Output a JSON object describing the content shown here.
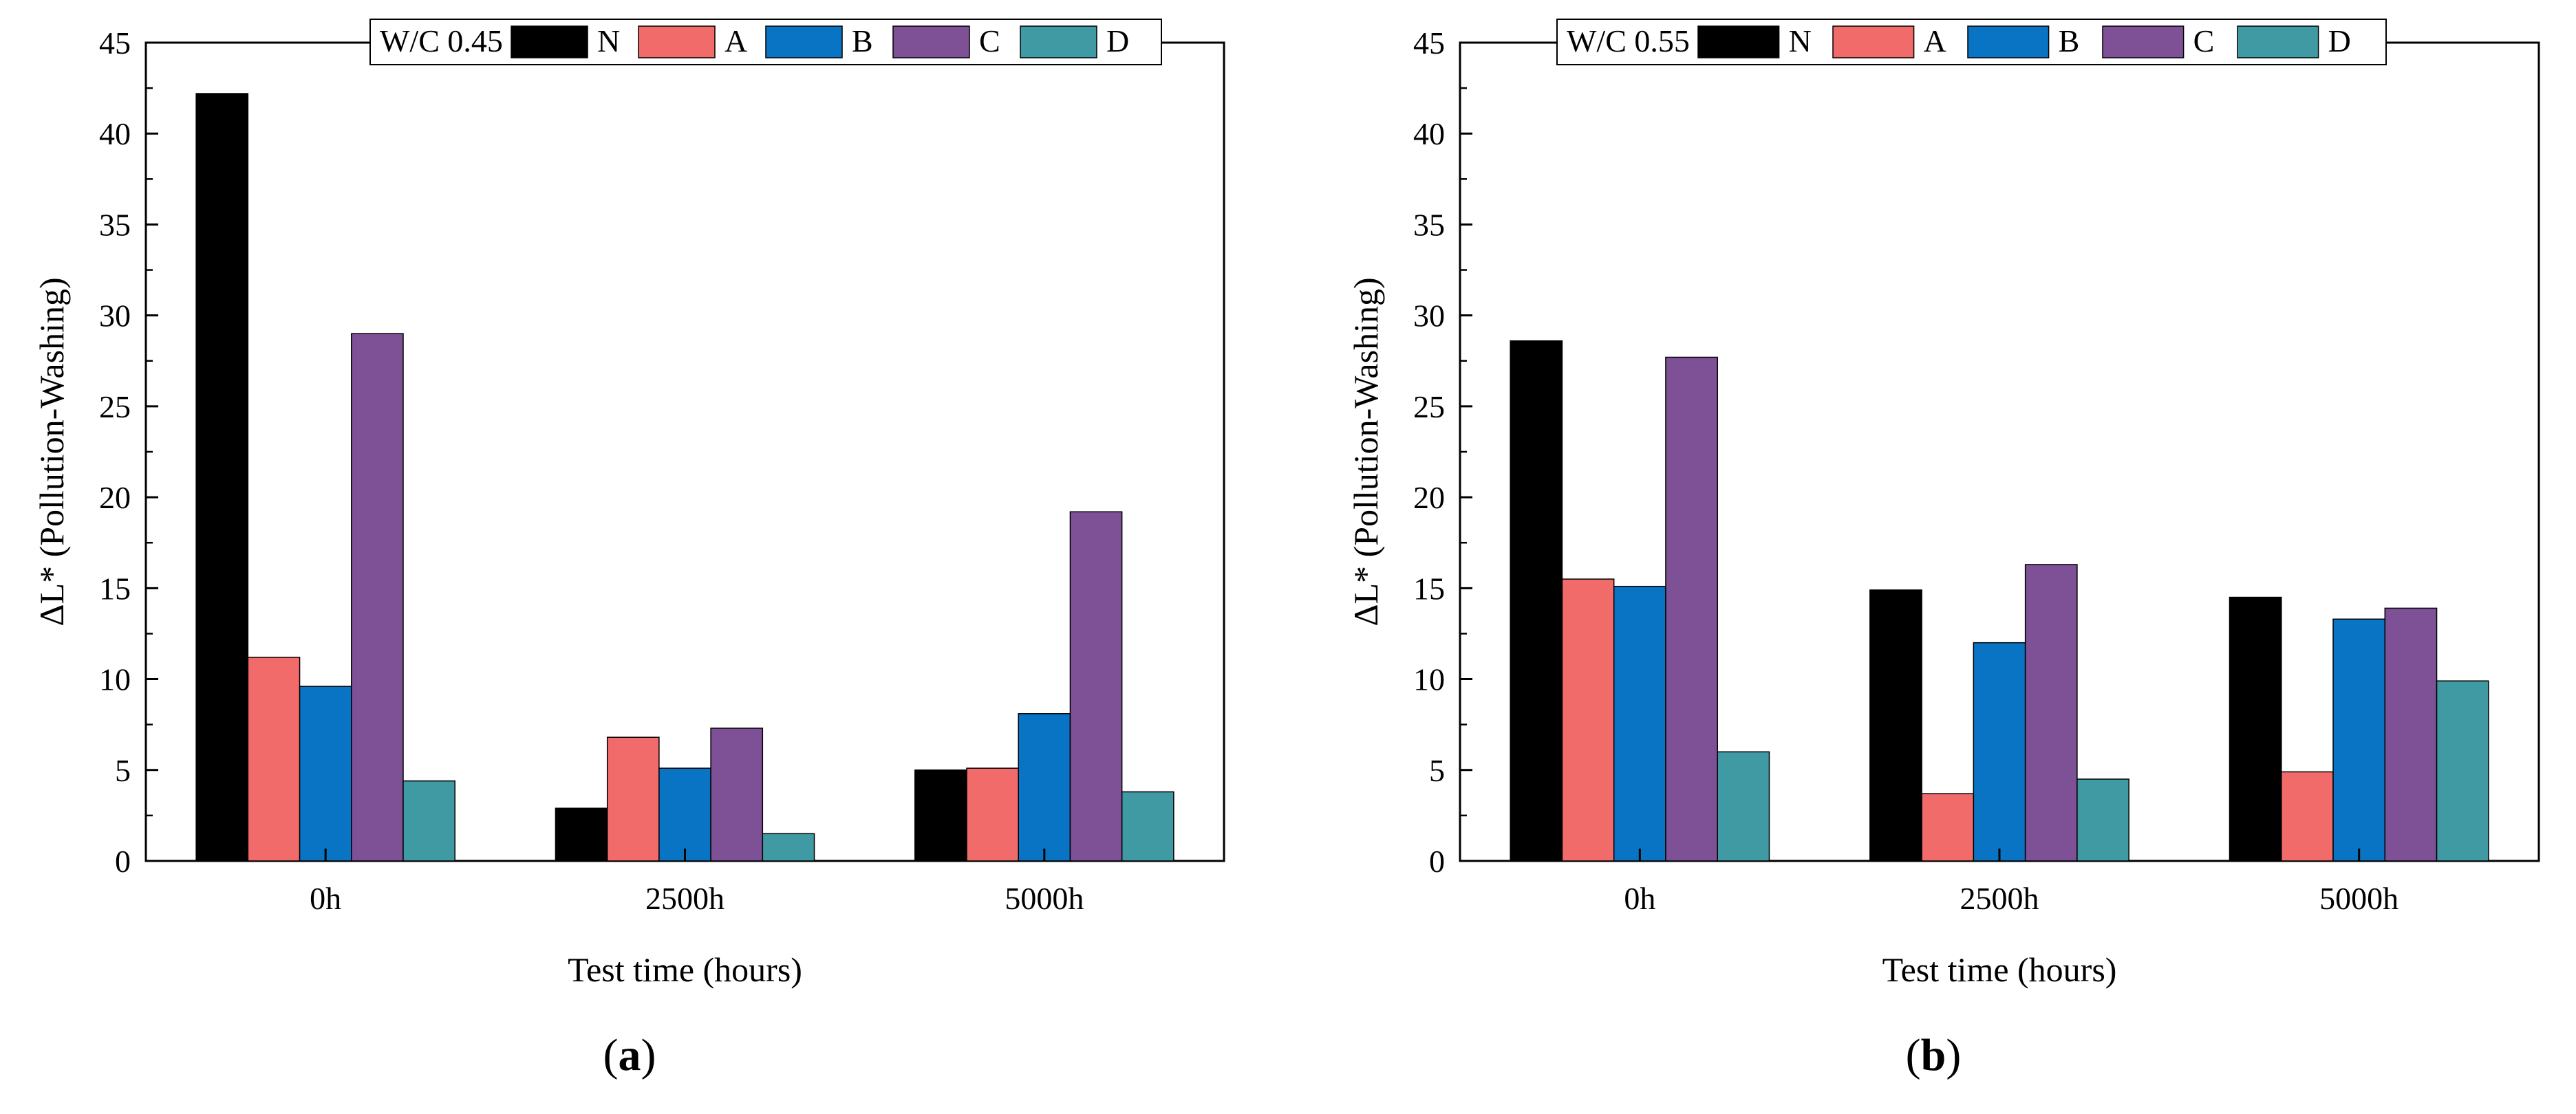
{
  "chart_data": [
    {
      "type": "bar",
      "panel": "a",
      "legend_title": "W/C 0.45",
      "categories": [
        "0h",
        "2500h",
        "5000h"
      ],
      "series": [
        {
          "name": "N",
          "color": "#000000",
          "values": [
            42.2,
            2.9,
            5.0
          ]
        },
        {
          "name": "A",
          "color": "#f26b6b",
          "values": [
            11.2,
            6.8,
            5.1
          ]
        },
        {
          "name": "B",
          "color": "#0a74c4",
          "values": [
            9.6,
            5.1,
            8.1
          ]
        },
        {
          "name": "C",
          "color": "#7e5196",
          "values": [
            29.0,
            7.3,
            19.2
          ]
        },
        {
          "name": "D",
          "color": "#3f9aa3",
          "values": [
            4.4,
            1.5,
            3.8
          ]
        }
      ],
      "ylim": [
        0,
        45
      ],
      "yticks": [
        "0",
        "5",
        "10",
        "15",
        "20",
        "25",
        "30",
        "35",
        "40",
        "45"
      ],
      "xlabel": "Test time (hours)",
      "ylabel": "ΔL* (Pollution-Washing)",
      "caption_open": "(",
      "caption_letter": "a",
      "caption_close": ")",
      "legend_position": "top-center"
    },
    {
      "type": "bar",
      "panel": "b",
      "legend_title": "W/C 0.55",
      "categories": [
        "0h",
        "2500h",
        "5000h"
      ],
      "series": [
        {
          "name": "N",
          "color": "#000000",
          "values": [
            28.6,
            14.9,
            14.5
          ]
        },
        {
          "name": "A",
          "color": "#f26b6b",
          "values": [
            15.5,
            3.7,
            4.9
          ]
        },
        {
          "name": "B",
          "color": "#0a74c4",
          "values": [
            15.1,
            12.0,
            13.3
          ]
        },
        {
          "name": "C",
          "color": "#7e5196",
          "values": [
            27.7,
            16.3,
            13.9
          ]
        },
        {
          "name": "D",
          "color": "#3f9aa3",
          "values": [
            6.0,
            4.5,
            9.9
          ]
        }
      ],
      "ylim": [
        0,
        45
      ],
      "yticks": [
        "0",
        "5",
        "10",
        "15",
        "20",
        "25",
        "30",
        "35",
        "40",
        "45"
      ],
      "xlabel": "Test time (hours)",
      "ylabel": "ΔL* (Pollution-Washing)",
      "caption_open": "(",
      "caption_letter": "b",
      "caption_close": ")",
      "legend_position": "top-center"
    }
  ]
}
